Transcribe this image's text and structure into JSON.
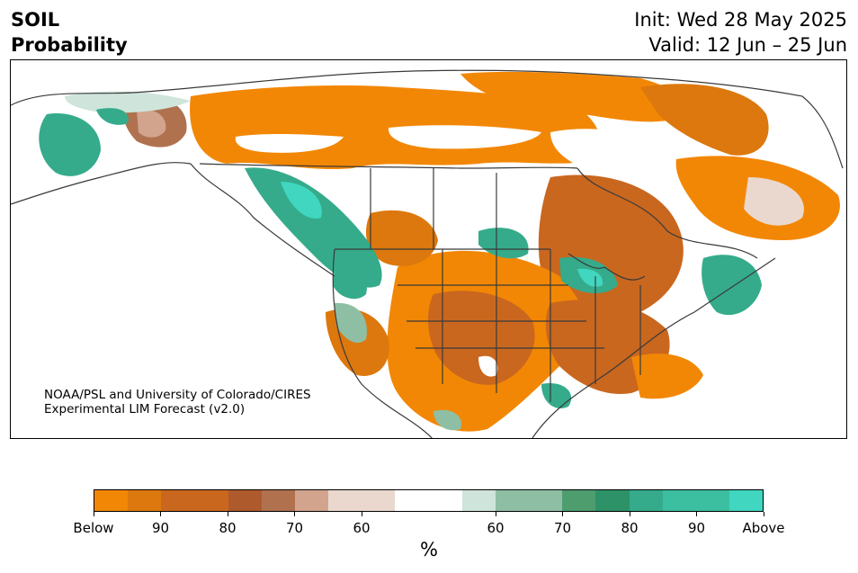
{
  "header": {
    "variable": "SOIL",
    "subtitle": "Probability",
    "init": "Init: Wed 28 May 2025",
    "valid": "Valid: 12 Jun – 25 Jun"
  },
  "credit": {
    "line1": "NOAA/PSL and University of Colorado/CIRES",
    "line2": "Experimental LIM Forecast (v2.0)"
  },
  "colorbar": {
    "colors": [
      "#f28705",
      "#dc780d",
      "#c9671f",
      "#c9671f",
      "#ae5a2d",
      "#b0714f",
      "#d2a48e",
      "#ead8ce",
      "#ead8ce",
      "#ffffff",
      "#ffffff",
      "#cfe5db",
      "#8ebfa5",
      "#8ebfa5",
      "#4e9d6f",
      "#2e9268",
      "#35ab8b",
      "#3cbfa0",
      "#3cbfa0",
      "#40d6c0"
    ],
    "tick_labels": [
      "Below",
      "90",
      "80",
      "70",
      "60",
      "60",
      "70",
      "80",
      "90",
      "Above"
    ],
    "unit": "%"
  },
  "palette": {
    "below_strong": "#f28705",
    "below_mid": "#c9671f",
    "below_weak": "#ead8ce",
    "above_weak": "#cfe5db",
    "above_mid": "#35ab8b",
    "above_strong": "#40d6c0",
    "boundary": "#3a3a3a"
  }
}
